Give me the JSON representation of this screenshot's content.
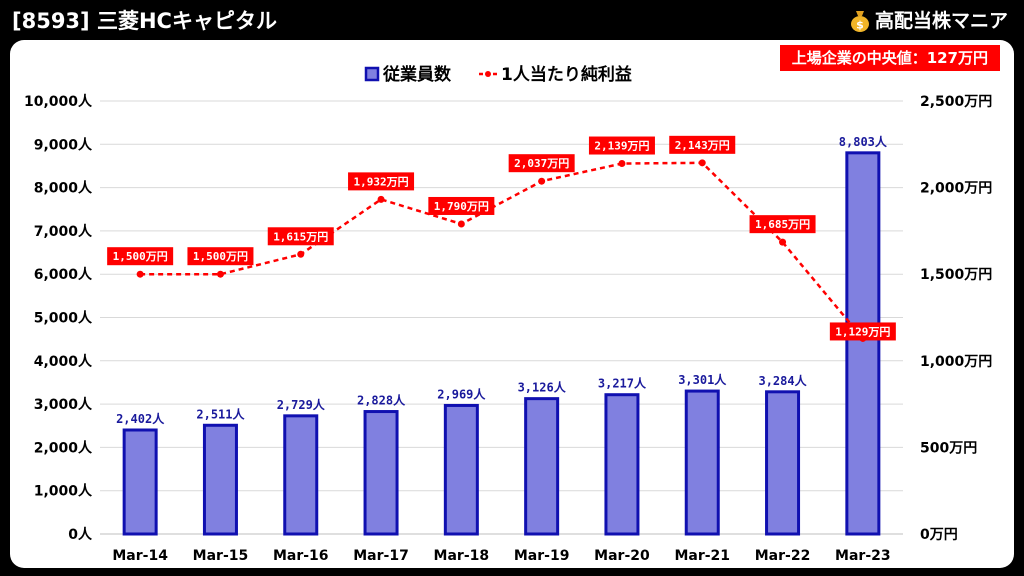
{
  "header": {
    "title": "[8593] 三菱HCキャピタル",
    "brand": "高配当株マニア"
  },
  "badge": {
    "median_text": "上場企業の中央値：127万円"
  },
  "colors": {
    "bar_fill": "#8080e0",
    "bar_stroke": "#1010b0",
    "line": "#ff0000",
    "label_bg": "#ff0000",
    "bar_label_text": "#1a1a9c"
  },
  "chart_data": {
    "type": "bar",
    "categories": [
      "Mar-14",
      "Mar-15",
      "Mar-16",
      "Mar-17",
      "Mar-18",
      "Mar-19",
      "Mar-20",
      "Mar-21",
      "Mar-22",
      "Mar-23"
    ],
    "series": [
      {
        "name": "従業員数",
        "type": "bar",
        "axis": "left",
        "values": [
          2402,
          2511,
          2729,
          2828,
          2969,
          3126,
          3217,
          3301,
          3284,
          8803
        ],
        "labels": [
          "2,402人",
          "2,511人",
          "2,729人",
          "2,828人",
          "2,969人",
          "3,126人",
          "3,217人",
          "3,301人",
          "3,284人",
          "8,803人"
        ]
      },
      {
        "name": "1人当たり純利益",
        "type": "line",
        "axis": "right",
        "values": [
          1500,
          1500,
          1615,
          1932,
          1790,
          2037,
          2139,
          2143,
          1685,
          1129
        ],
        "labels": [
          "1,500万円",
          "1,500万円",
          "1,615万円",
          "1,932万円",
          "1,790万円",
          "2,037万円",
          "2,139万円",
          "2,143万円",
          "1,685万円",
          "1,129万円"
        ]
      }
    ],
    "y_left": {
      "ylim": [
        0,
        10000
      ],
      "tick_labels": [
        "0人",
        "1,000人",
        "2,000人",
        "3,000人",
        "4,000人",
        "5,000人",
        "6,000人",
        "7,000人",
        "8,000人",
        "9,000人",
        "10,000人"
      ]
    },
    "y_right": {
      "ylim": [
        0,
        2500
      ],
      "tick_labels": [
        "0万円",
        "500万円",
        "1,000万円",
        "1,500万円",
        "2,000万円",
        "2,500万円"
      ]
    },
    "legend": {
      "placement": "top-center",
      "entries": [
        "従業員数",
        "1人当たり純利益"
      ]
    },
    "grid": true
  }
}
